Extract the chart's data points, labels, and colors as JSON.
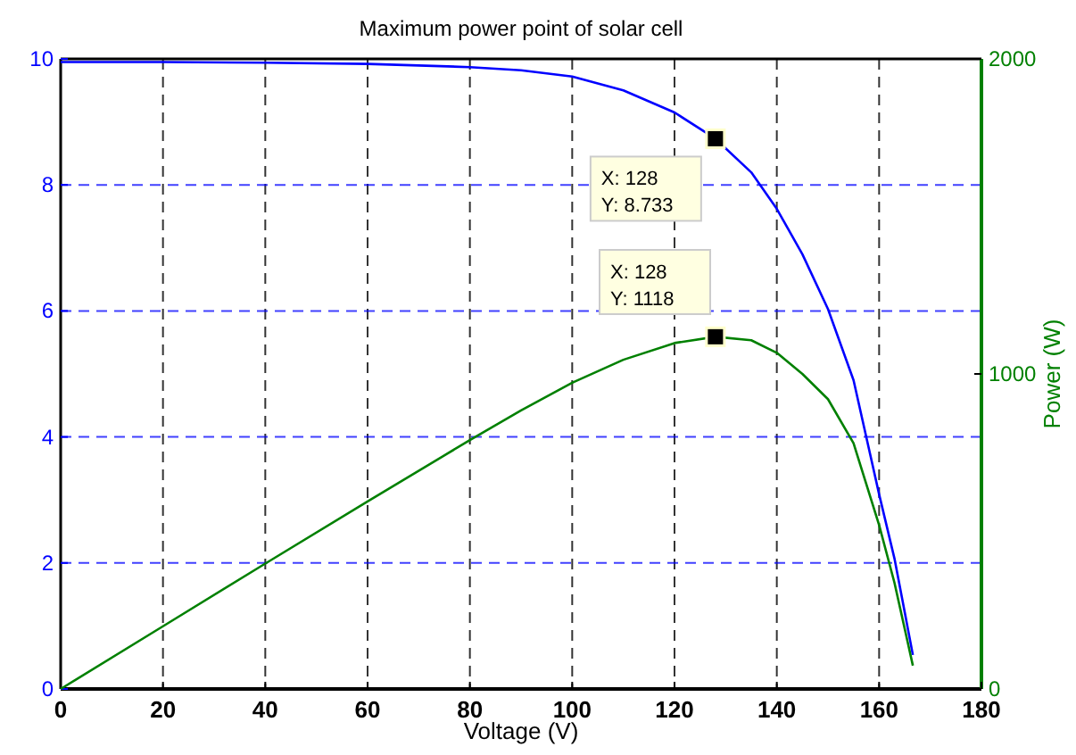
{
  "chart_data": {
    "type": "line",
    "title": "Maximum power point of solar cell",
    "xlabel": "Voltage (V)",
    "y2label": "Power (W)",
    "xlim": [
      0,
      180
    ],
    "xticks": [
      0,
      20,
      40,
      60,
      80,
      100,
      120,
      140,
      160,
      180
    ],
    "ylim": [
      0,
      10
    ],
    "yticks": [
      0,
      2,
      4,
      6,
      8,
      10
    ],
    "y2lim": [
      0,
      2000
    ],
    "y2ticks": [
      0,
      1000,
      2000
    ],
    "grid": true,
    "line_style": "solid",
    "x": [
      0,
      20,
      40,
      60,
      80,
      90,
      100,
      110,
      120,
      128,
      135,
      140,
      145,
      150,
      155,
      160,
      163,
      166.6
    ],
    "series": [
      {
        "color": "#0000ff",
        "values": [
          9.95,
          9.95,
          9.94,
          9.92,
          9.87,
          9.82,
          9.72,
          9.5,
          9.15,
          8.733,
          8.2,
          7.62,
          6.9,
          6.03,
          4.9,
          3.09,
          2.07,
          0.54
        ]
      },
      {
        "color": "#008000",
        "axis": "y2",
        "values": [
          0,
          199,
          398,
          595,
          790,
          884,
          972,
          1045,
          1098,
          1118,
          1107,
          1067,
          1000,
          920,
          780,
          520,
          337,
          74
        ]
      },
      {
        "type": "scatter",
        "marker": "square",
        "color": "#000000",
        "x": [
          128
        ],
        "values": [
          8.733
        ]
      },
      {
        "type": "scatter",
        "marker": "square",
        "color": "#000000",
        "axis": "y2",
        "x": [
          128
        ],
        "values": [
          1118
        ]
      }
    ],
    "annotations": [
      {
        "text": "X: 128\nY: 8.733",
        "x": 128,
        "y": 8.733
      },
      "X: 128\nY: 1118"
    ]
  }
}
